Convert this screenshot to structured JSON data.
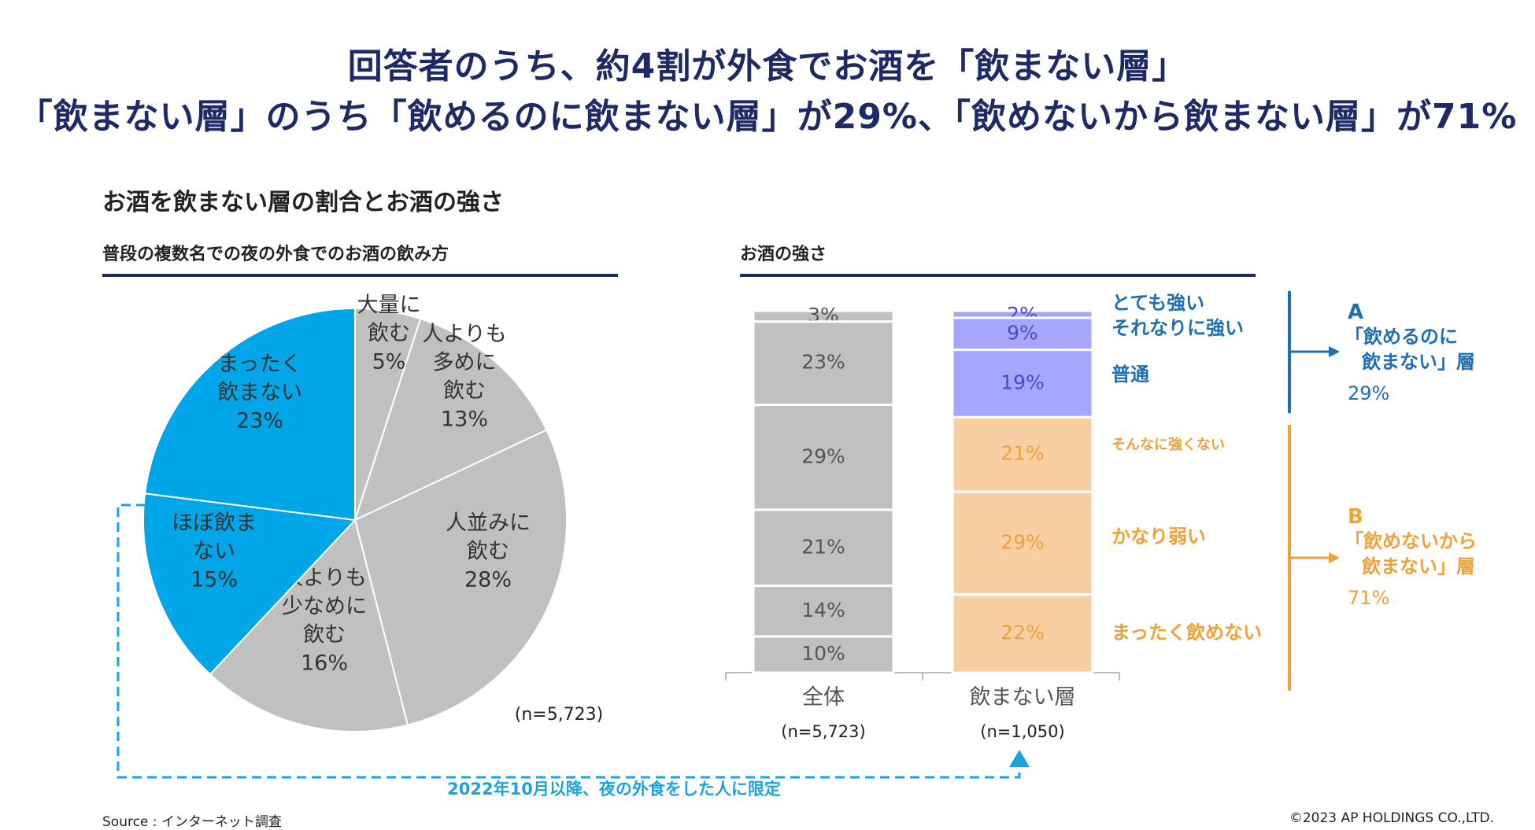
{
  "headline": {
    "line1": "回答者のうち、約4割が外食でお酒を「飲まない層」",
    "line2": "「飲まない層」のうち「飲めるのに飲まない層」が29%、「飲めないから飲まない層」が71%"
  },
  "section_title": "お酒を飲まない層の割合とお酒の強さ",
  "pie_subtitle": "普段の複数名での夜の外食でのお酒の飲み方",
  "bar_subtitle": "お酒の強さ",
  "note_limited": "2022年10月以降、夜の外食をした人に限定",
  "source": "Source : インターネット調査",
  "copyright": "©2023 AP HOLDINGS CO.,LTD.",
  "groups": {
    "a": {
      "letter": "A",
      "line1": "「飲めるのに",
      "line2": "飲まない」層",
      "pct": "29%",
      "color": "#1f6fb2"
    },
    "b": {
      "letter": "B",
      "line1": "「飲めないから",
      "line2": "飲まない」層",
      "pct": "71%",
      "color": "#f0a23a"
    }
  },
  "chart_data": [
    {
      "type": "pie",
      "title": "普段の複数名での夜の外食でのお酒の飲み方",
      "n_label": "(n=5,723)",
      "slices": [
        {
          "label_lines": [
            "大量に",
            "飲む"
          ],
          "value": 5,
          "value_label": "5%",
          "color": "#c0c0c0",
          "highlight": false
        },
        {
          "label_lines": [
            "人よりも",
            "多めに",
            "飲む"
          ],
          "value": 13,
          "value_label": "13%",
          "color": "#c0c0c0",
          "highlight": false
        },
        {
          "label_lines": [
            "人並みに",
            "飲む"
          ],
          "value": 28,
          "value_label": "28%",
          "color": "#c0c0c0",
          "highlight": false
        },
        {
          "label_lines": [
            "人よりも",
            "少なめに",
            "飲む"
          ],
          "value": 16,
          "value_label": "16%",
          "color": "#c0c0c0",
          "highlight": false
        },
        {
          "label_lines": [
            "ほぼ飲ま",
            "ない"
          ],
          "value": 15,
          "value_label": "15%",
          "color": "#00a6e8",
          "highlight": true
        },
        {
          "label_lines": [
            "まったく",
            "飲まない"
          ],
          "value": 23,
          "value_label": "23%",
          "color": "#00a6e8",
          "highlight": true
        }
      ]
    },
    {
      "type": "bar",
      "stacked": true,
      "title": "お酒の強さ",
      "categories": [
        "全体",
        "飲まない層"
      ],
      "n_labels": [
        "(n=5,723)",
        "(n=1,050)"
      ],
      "series": [
        {
          "name": "とても強い",
          "values": [
            3,
            2
          ],
          "gray": "#c0c0c0",
          "color": "#a6a6ff",
          "legend_color": "#1f6fb2"
        },
        {
          "name": "それなりに強い",
          "values": [
            23,
            9
          ],
          "gray": "#c0c0c0",
          "color": "#a6a6ff",
          "legend_color": "#1f6fb2"
        },
        {
          "name": "普通",
          "values": [
            29,
            19
          ],
          "gray": "#c0c0c0",
          "color": "#a6a6ff",
          "legend_color": "#1f6fb2"
        },
        {
          "name": "そんなに強くない",
          "values": [
            21,
            21
          ],
          "gray": "#c0c0c0",
          "color": "#f8cfa3",
          "legend_color": "#f0a23a"
        },
        {
          "name": "かなり弱い",
          "values": [
            14,
            29
          ],
          "gray": "#c0c0c0",
          "color": "#f8cfa3",
          "legend_color": "#f0a23a"
        },
        {
          "name": "まったく飲めない",
          "values": [
            10,
            22
          ],
          "gray": "#c0c0c0",
          "color": "#f8cfa3",
          "legend_color": "#f0a23a"
        }
      ],
      "value_labels": [
        [
          "3%",
          "23%",
          "29%",
          "21%",
          "14%",
          "10%"
        ],
        [
          "2%",
          "9%",
          "19%",
          "21%",
          "29%",
          "22%"
        ]
      ],
      "value_label_colors": [
        "#555555",
        "#4a4ad0",
        "#f0a23a"
      ]
    }
  ]
}
